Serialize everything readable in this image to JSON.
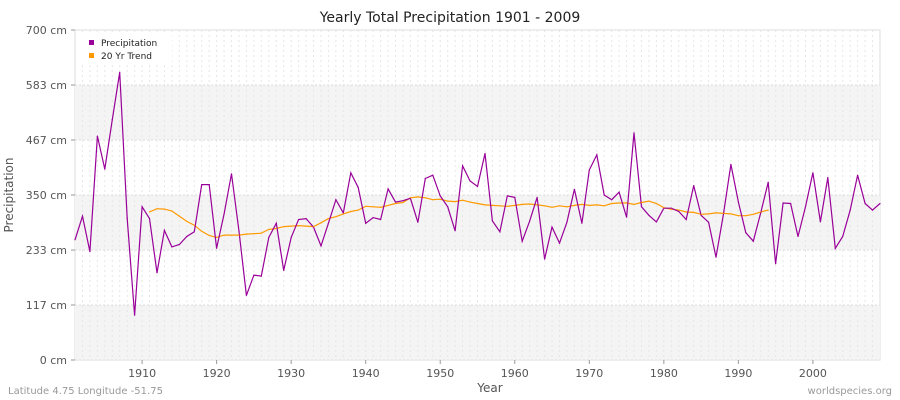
{
  "chart_data": {
    "type": "line",
    "title": "Yearly Total Precipitation 1901 - 2009",
    "xlabel": "Year",
    "ylabel": "Precipitation",
    "xlim": [
      1901,
      2009
    ],
    "ylim": [
      0,
      700
    ],
    "x_ticks": [
      1910,
      1920,
      1930,
      1940,
      1950,
      1960,
      1970,
      1980,
      1990,
      2000
    ],
    "y_ticks": [
      {
        "value": 0,
        "label": "0 cm"
      },
      {
        "value": 116.7,
        "label": "117 cm"
      },
      {
        "value": 233.3,
        "label": "233 cm"
      },
      {
        "value": 350,
        "label": "350 cm"
      },
      {
        "value": 466.7,
        "label": "467 cm"
      },
      {
        "value": 583.3,
        "label": "583 cm"
      },
      {
        "value": 700,
        "label": "700 cm"
      }
    ],
    "legend_position": "top-left",
    "series": [
      {
        "name": "Precipitation",
        "color": "#990099",
        "x_start": 1901,
        "values": [
          255,
          305,
          230,
          475,
          405,
          510,
          610,
          300,
          95,
          325,
          300,
          185,
          275,
          240,
          245,
          262,
          272,
          372,
          372,
          237,
          310,
          395,
          273,
          137,
          180,
          178,
          260,
          290,
          190,
          260,
          298,
          300,
          282,
          242,
          290,
          340,
          312,
          397,
          366,
          290,
          302,
          298,
          363,
          335,
          338,
          343,
          292,
          385,
          392,
          348,
          325,
          274,
          412,
          380,
          368,
          438,
          295,
          272,
          348,
          345,
          252,
          295,
          345,
          214,
          282,
          248,
          292,
          362,
          290,
          403,
          435,
          350,
          340,
          356,
          303,
          482,
          325,
          307,
          293,
          322,
          322,
          315,
          298,
          370,
          307,
          292,
          218,
          310,
          415,
          335,
          270,
          252,
          312,
          377,
          204,
          333,
          332,
          262,
          325,
          397,
          293,
          387,
          237,
          262,
          318,
          392,
          332,
          318,
          332
        ]
      },
      {
        "name": "20 Yr Trend",
        "color": "#ff9900",
        "x_start": 1911,
        "values": [
          314,
          321,
          320,
          316,
          305,
          294,
          286,
          273,
          264,
          260,
          265,
          265,
          265,
          267,
          268,
          269,
          277,
          279,
          283,
          284,
          285,
          284,
          283,
          291,
          300,
          304,
          310,
          315,
          318,
          326,
          325,
          324,
          328,
          332,
          334,
          344,
          346,
          344,
          340,
          341,
          337,
          336,
          339,
          335,
          332,
          329,
          328,
          327,
          326,
          328,
          330,
          331,
          329,
          327,
          324,
          327,
          325,
          328,
          330,
          328,
          329,
          327,
          332,
          333,
          333,
          330,
          334,
          337,
          332,
          323,
          320,
          318,
          314,
          313,
          309,
          310,
          312,
          311,
          310,
          306,
          306,
          309,
          314,
          318
        ]
      }
    ]
  },
  "footer": {
    "left": "Latitude 4.75 Longitude -51.75",
    "right": "worldspecies.org"
  }
}
